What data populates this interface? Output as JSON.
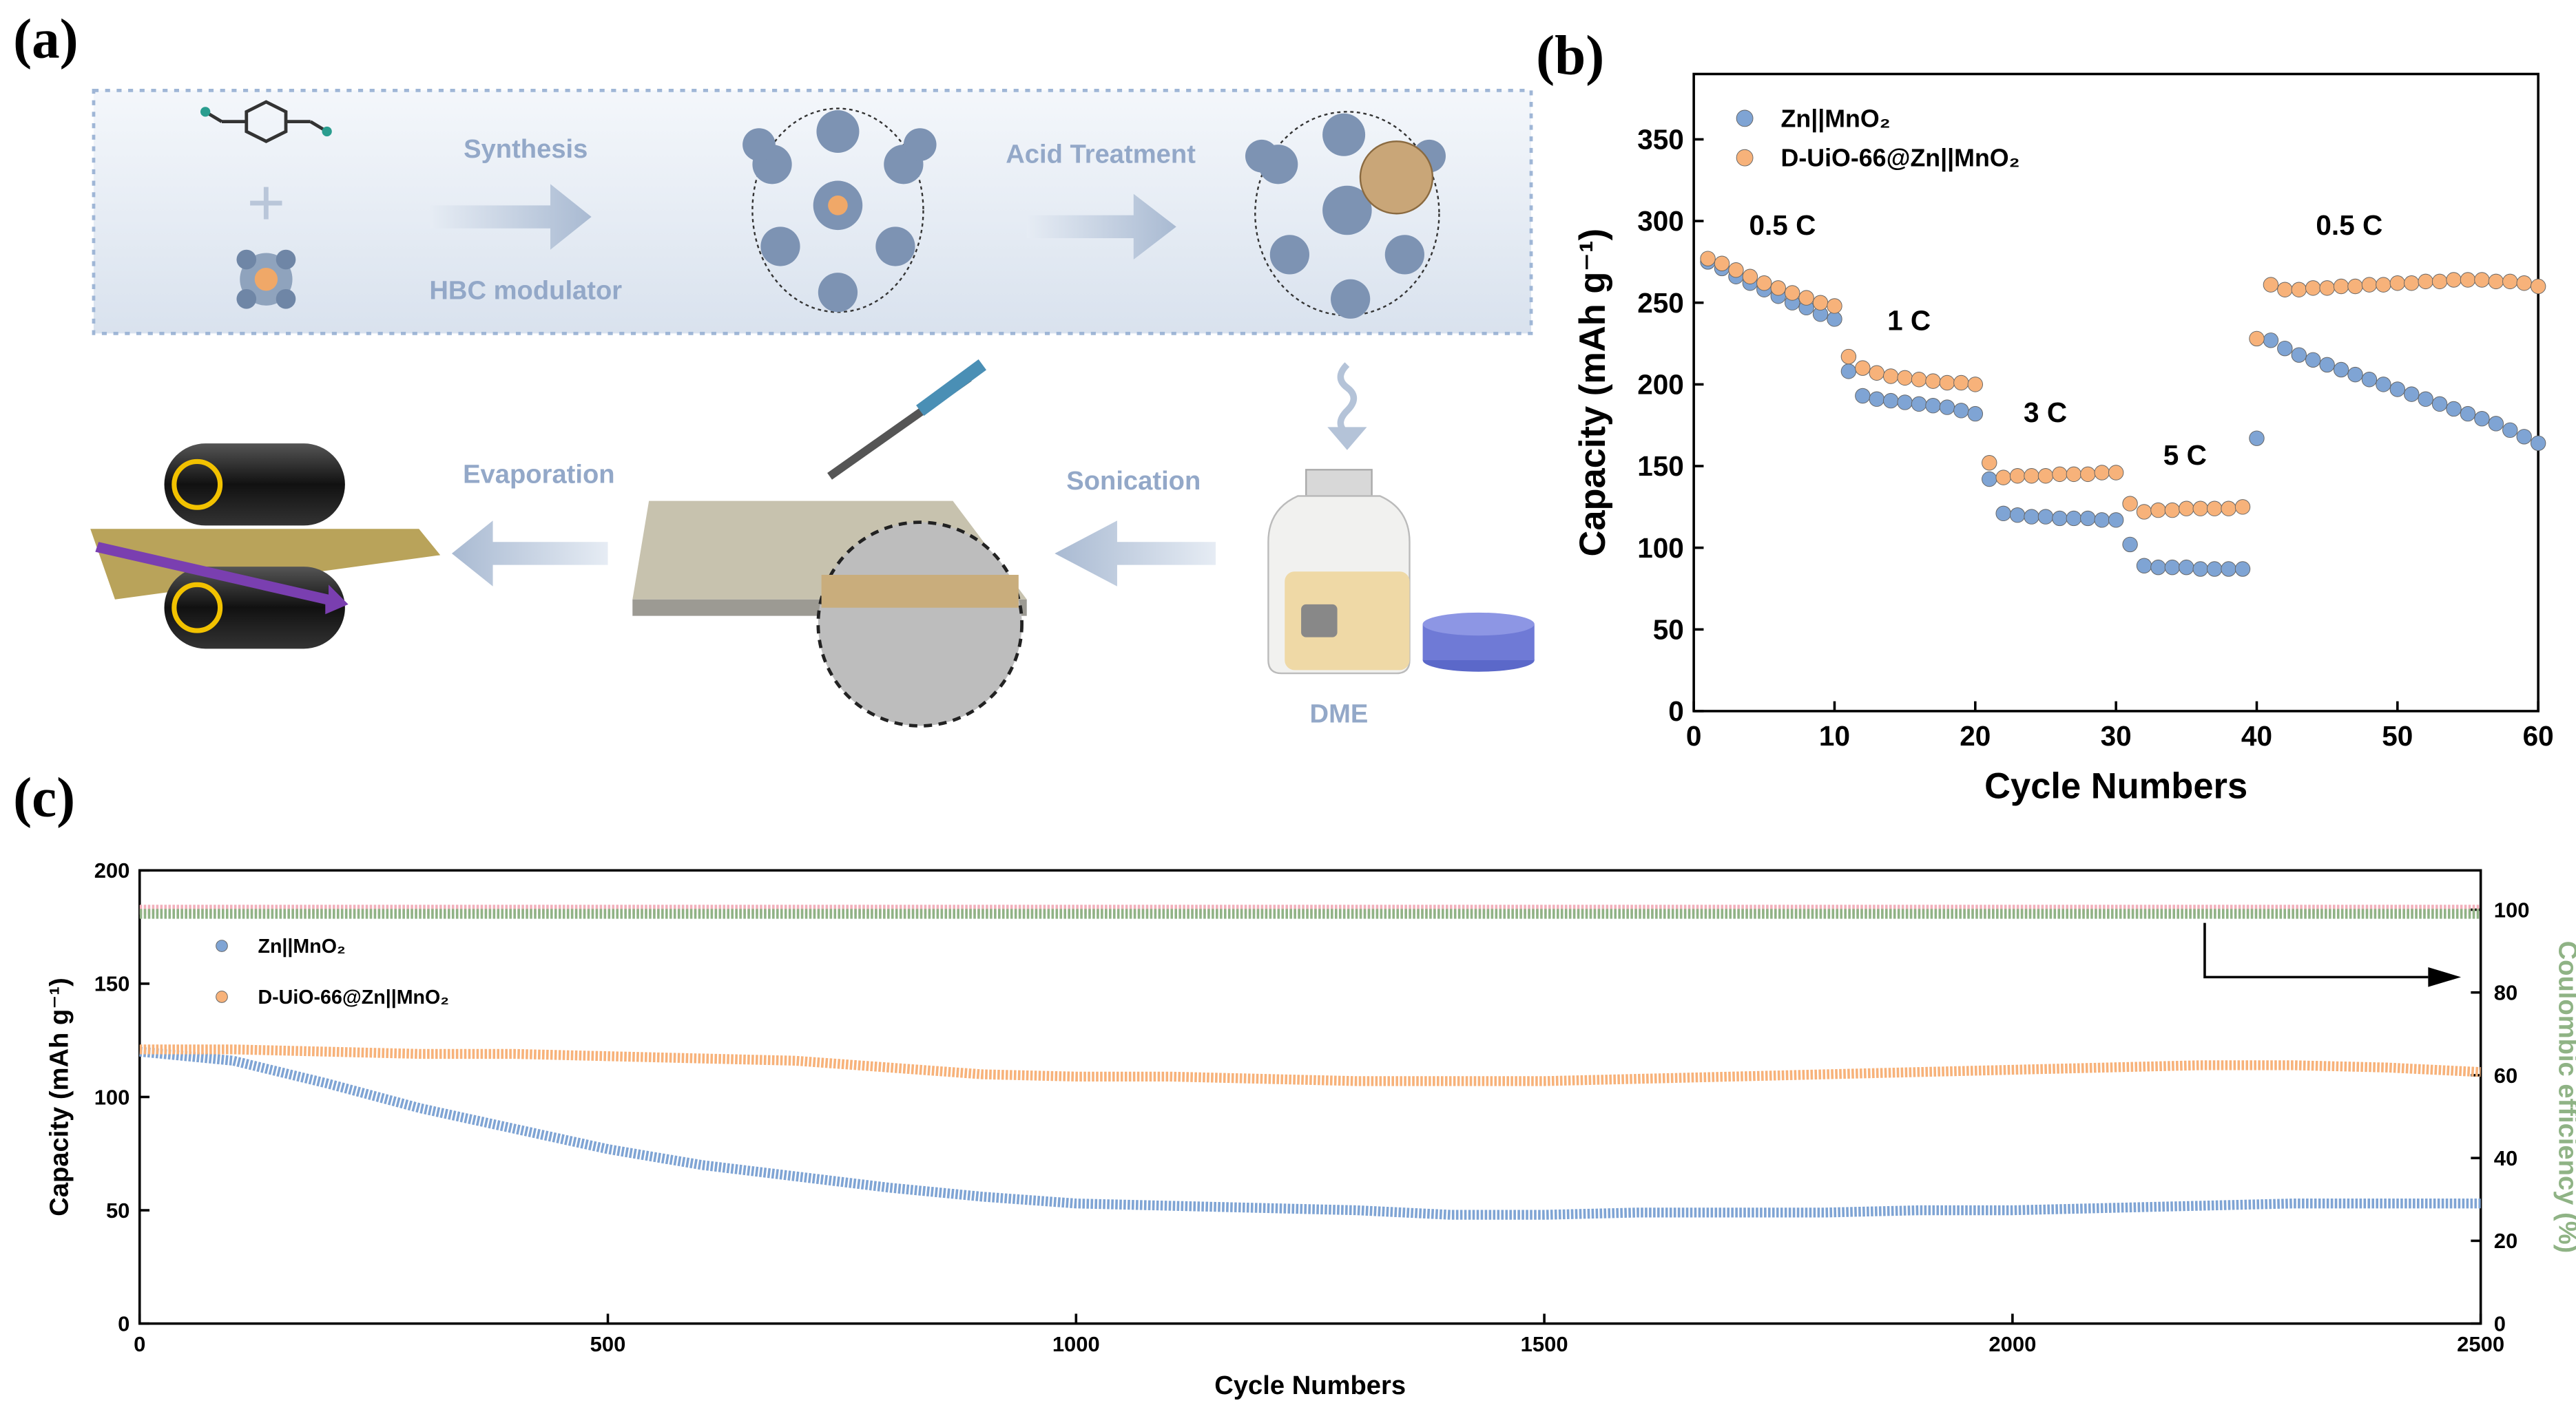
{
  "panel_labels": [
    "(a)",
    "(b)",
    "(c)"
  ],
  "schematic": {
    "steps": [
      "Synthesis",
      "HBC modulator",
      "Acid Treatment",
      "Evaporation",
      "Sonication",
      "DME"
    ]
  },
  "chart_data": [
    {
      "type": "scatter",
      "x_label": "Cycle Numbers",
      "y_label": "Capacity (mAh g⁻¹)",
      "xlim": [
        0,
        60
      ],
      "xticks": [
        0,
        10,
        20,
        30,
        40,
        50,
        60
      ],
      "ylim": [
        0,
        390
      ],
      "yticks": [
        0,
        50,
        100,
        150,
        200,
        250,
        300,
        350
      ],
      "legend": "upper left",
      "annotations": [
        "0.5 C",
        "1 C",
        "3 C",
        "5 C",
        "0.5 C"
      ],
      "x": [
        1,
        2,
        3,
        4,
        5,
        6,
        7,
        8,
        9,
        10,
        11,
        12,
        13,
        14,
        15,
        16,
        17,
        18,
        19,
        20,
        21,
        22,
        23,
        24,
        25,
        26,
        27,
        28,
        29,
        30,
        31,
        32,
        33,
        34,
        35,
        36,
        37,
        38,
        39,
        40,
        41,
        42,
        43,
        44,
        45,
        46,
        47,
        48,
        49,
        50,
        51,
        52,
        53,
        54,
        55,
        56,
        57,
        58,
        59,
        60
      ],
      "series": [
        {
          "name": "Zn||MnO₂",
          "color": "#7fa4d4",
          "values": [
            275,
            271,
            266,
            262,
            258,
            254,
            250,
            247,
            243,
            240,
            208,
            193,
            191,
            190,
            189,
            188,
            187,
            186,
            184,
            182,
            142,
            121,
            120,
            119,
            119,
            118,
            118,
            118,
            117,
            117,
            102,
            89,
            88,
            88,
            88,
            87,
            87,
            87,
            87,
            167,
            227,
            222,
            218,
            215,
            212,
            209,
            206,
            203,
            200,
            197,
            194,
            191,
            188,
            185,
            182,
            179,
            176,
            172,
            168,
            164
          ]
        },
        {
          "name": "D-UiO-66@Zn||MnO₂",
          "color": "#f7b27a",
          "values": [
            277,
            274,
            270,
            266,
            262,
            259,
            256,
            253,
            250,
            248,
            217,
            210,
            207,
            205,
            204,
            203,
            202,
            201,
            201,
            200,
            152,
            143,
            144,
            144,
            144,
            145,
            145,
            145,
            146,
            146,
            127,
            122,
            123,
            123,
            124,
            124,
            124,
            124,
            125,
            228,
            261,
            258,
            258,
            259,
            259,
            260,
            260,
            261,
            261,
            262,
            262,
            263,
            263,
            264,
            264,
            264,
            263,
            263,
            262,
            260
          ]
        }
      ]
    },
    {
      "type": "line",
      "x_label": "Cycle Numbers",
      "y_label": "Capacity (mAh g⁻¹)",
      "y2_label": "Coulombic efficiency (%)",
      "xlim": [
        0,
        2500
      ],
      "xticks": [
        0,
        500,
        1000,
        1500,
        2000,
        2500
      ],
      "ylim": [
        0,
        200
      ],
      "yticks": [
        0,
        50,
        100,
        150,
        200
      ],
      "y2lim": [
        0,
        109.5
      ],
      "y2ticks": [
        0,
        20,
        40,
        60,
        80,
        100
      ],
      "legend": "upper left",
      "x": [
        0,
        100,
        200,
        300,
        400,
        500,
        600,
        700,
        800,
        900,
        1000,
        1100,
        1200,
        1300,
        1400,
        1500,
        1600,
        1700,
        1800,
        1900,
        2000,
        2100,
        2200,
        2300,
        2400,
        2500
      ],
      "series": [
        {
          "name": "Zn||MnO₂",
          "color": "#7fa4d4",
          "values": [
            120,
            116,
            106,
            95,
            86,
            77,
            70,
            65,
            60,
            56,
            53,
            52,
            51,
            50,
            48,
            48,
            49,
            49,
            49,
            50,
            50,
            51,
            52,
            53,
            53,
            53
          ]
        },
        {
          "name": "D-UiO-66@Zn||MnO₂",
          "color": "#f7b27a",
          "values": [
            121,
            121,
            120,
            119,
            119,
            118,
            117,
            116,
            113,
            110,
            109,
            109,
            108,
            107,
            107,
            107,
            108,
            109,
            110,
            111,
            112,
            113,
            114,
            114,
            113,
            111
          ]
        },
        {
          "axis": "y2",
          "color": "#f2b0bb",
          "values": [
            100,
            100,
            100,
            100,
            100,
            100,
            100,
            100,
            100,
            100,
            100,
            100,
            100,
            100,
            100,
            100,
            100,
            100,
            100,
            100,
            100,
            100,
            100,
            100,
            100,
            100
          ]
        },
        {
          "axis": "y2",
          "color": "#8fb385",
          "values": [
            99,
            99,
            99,
            99,
            99,
            99,
            99,
            99,
            99,
            99,
            99,
            99,
            99,
            99,
            99,
            99,
            99,
            99,
            99,
            99,
            99,
            99,
            99,
            99,
            99,
            99
          ]
        }
      ]
    }
  ]
}
